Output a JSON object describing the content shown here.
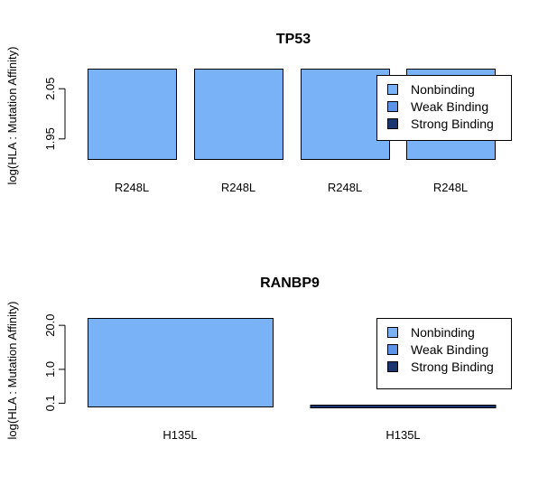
{
  "colors": {
    "nonbinding": "#7AB2F8",
    "weak": "#5B93E8",
    "strong": "#1A3570",
    "axis": "#000000"
  },
  "chart_data": [
    {
      "type": "bar",
      "title": "TP53",
      "ylabel": "log(HLA : Mutation Affinity)",
      "categories": [
        "R248L",
        "R248L",
        "R248L",
        "R248L"
      ],
      "series": [
        {
          "values": [
            2.09,
            2.09,
            2.09,
            2.09
          ],
          "color_key": "nonbinding"
        }
      ],
      "y_ticks": [
        "1.95",
        "2.05"
      ],
      "y_tick_values": [
        1.95,
        2.05
      ],
      "ylim": [
        1.91,
        2.09
      ],
      "legend": {
        "placement": "right",
        "entries": [
          {
            "label": "Nonbinding",
            "color_key": "nonbinding"
          },
          {
            "label": "Weak Binding",
            "color_key": "weak"
          },
          {
            "label": "Strong Binding",
            "color_key": "strong"
          }
        ]
      }
    },
    {
      "type": "bar",
      "title": "RANBP9",
      "ylabel": "log(HLA : Mutation Affinity)",
      "log_scale": true,
      "categories": [
        "H135L",
        "H135L"
      ],
      "series": [
        {
          "values": [
            33,
            0.08
          ],
          "color_keys": [
            "nonbinding",
            "strong"
          ]
        }
      ],
      "y_ticks": [
        "0.1",
        "1.0",
        "20.0"
      ],
      "y_tick_values": [
        0.1,
        1.0,
        20.0
      ],
      "ylim": [
        0.08,
        33
      ],
      "legend": {
        "placement": "right",
        "entries": [
          {
            "label": "Nonbinding",
            "color_key": "nonbinding"
          },
          {
            "label": "Weak Binding",
            "color_key": "weak"
          },
          {
            "label": "Strong Binding",
            "color_key": "strong"
          }
        ]
      }
    }
  ]
}
